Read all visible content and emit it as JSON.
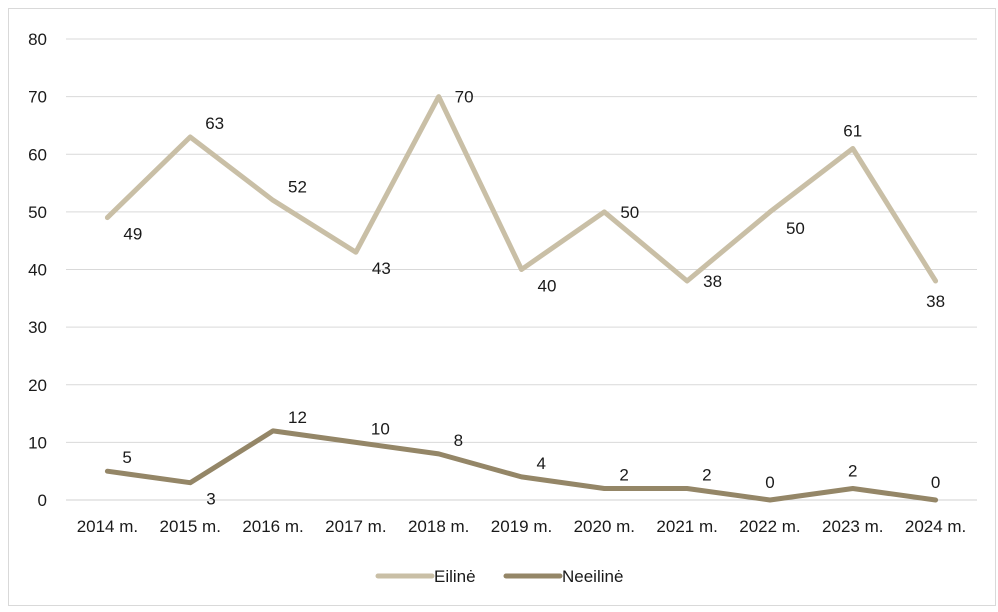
{
  "chart_data": {
    "type": "line",
    "title": "",
    "xlabel": "",
    "ylabel": "",
    "ylim": [
      0,
      80
    ],
    "yticks": [
      0,
      10,
      20,
      30,
      40,
      50,
      60,
      70,
      80
    ],
    "grid": true,
    "legend_position": "bottom",
    "categories": [
      "2014 m.",
      "2015 m.",
      "2016 m.",
      "2017 m.",
      "2018 m.",
      "2019 m.",
      "2020 m.",
      "2021 m.",
      "2022 m.",
      "2023 m.",
      "2024 m."
    ],
    "series": [
      {
        "name": "Eilinė",
        "color": "#c9bfa6",
        "values": [
          49,
          63,
          52,
          43,
          70,
          40,
          50,
          38,
          50,
          61,
          38
        ],
        "label_side": [
          "below-right",
          "above-right",
          "above-right",
          "below-right",
          "right",
          "below-right",
          "right",
          "right",
          "below-right",
          "above",
          "below"
        ]
      },
      {
        "name": "Neeilinė",
        "color": "#948667",
        "values": [
          5,
          3,
          12,
          10,
          8,
          4,
          2,
          2,
          0,
          2,
          0
        ],
        "label_side": [
          "above-right",
          "below-right",
          "above-right",
          "above-right",
          "above-right",
          "above-right",
          "above-right",
          "above-right",
          "above",
          "above",
          "above"
        ]
      }
    ]
  }
}
